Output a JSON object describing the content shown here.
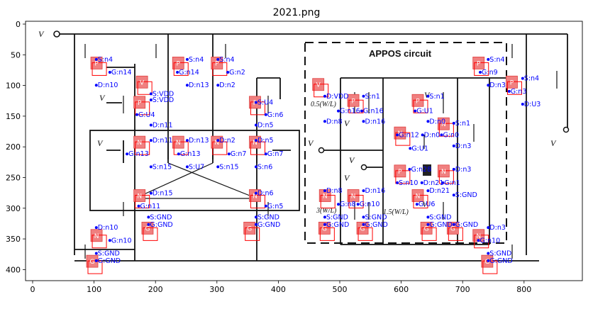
{
  "title": "2021.png",
  "axes": {
    "x_ticks": [
      "0",
      "100",
      "200",
      "300",
      "400",
      "500",
      "600",
      "700",
      "800"
    ],
    "y_ticks": [
      "0",
      "50",
      "100",
      "150",
      "200",
      "250",
      "300",
      "350",
      "400"
    ]
  },
  "circuit_labels": {
    "vin_left": "V",
    "apos_title": "APPOS circuit",
    "vout": "V",
    "vref": "V",
    "vover": "V",
    "vunder": "V",
    "scale1": "0.5(W/L)",
    "scale2": "3(W/L)",
    "scale3": "1.5(W/L)",
    "mp": "M",
    "vb3": "V",
    "vb1": "V",
    "vb2": "V",
    "vp": "V",
    "vn": "V"
  },
  "tags": [
    {
      "t": "P",
      "x": 104,
      "y": 64
    },
    {
      "t": "V",
      "x": 178,
      "y": 95
    },
    {
      "t": "P",
      "x": 174,
      "y": 128
    },
    {
      "t": "P",
      "x": 237,
      "y": 64
    },
    {
      "t": "P",
      "x": 300,
      "y": 64
    },
    {
      "t": "P",
      "x": 362,
      "y": 128
    },
    {
      "t": "N",
      "x": 174,
      "y": 193
    },
    {
      "t": "N",
      "x": 237,
      "y": 193
    },
    {
      "t": "N",
      "x": 300,
      "y": 193
    },
    {
      "t": "N",
      "x": 362,
      "y": 193
    },
    {
      "t": "N",
      "x": 174,
      "y": 280
    },
    {
      "t": "N",
      "x": 362,
      "y": 280
    },
    {
      "t": "G",
      "x": 187,
      "y": 333
    },
    {
      "t": "G",
      "x": 353,
      "y": 333
    },
    {
      "t": "N",
      "x": 104,
      "y": 345
    },
    {
      "t": "G",
      "x": 97,
      "y": 387
    },
    {
      "t": "V",
      "x": 465,
      "y": 99
    },
    {
      "t": "P",
      "x": 522,
      "y": 125
    },
    {
      "t": "P",
      "x": 627,
      "y": 125
    },
    {
      "t": "N",
      "x": 598,
      "y": 178
    },
    {
      "t": "N",
      "x": 669,
      "y": 163
    },
    {
      "t": "P",
      "x": 598,
      "y": 240
    },
    {
      "t": "N",
      "x": 669,
      "y": 240
    },
    {
      "t": "N",
      "x": 476,
      "y": 280
    },
    {
      "t": "N",
      "x": 522,
      "y": 280
    },
    {
      "t": "N",
      "x": 627,
      "y": 280
    },
    {
      "t": "G",
      "x": 475,
      "y": 333
    },
    {
      "t": "G",
      "x": 537,
      "y": 333
    },
    {
      "t": "G",
      "x": 641,
      "y": 333
    },
    {
      "t": "G",
      "x": 684,
      "y": 333
    },
    {
      "t": "P",
      "x": 726,
      "y": 64
    },
    {
      "t": "P",
      "x": 780,
      "y": 95
    },
    {
      "t": "N",
      "x": 726,
      "y": 345
    },
    {
      "t": "G",
      "x": 740,
      "y": 387
    }
  ],
  "node_labels": [
    {
      "s": "S:n4",
      "x": 106,
      "y": 61
    },
    {
      "s": "G:n14",
      "x": 128,
      "y": 82
    },
    {
      "s": "D:n10",
      "x": 106,
      "y": 103
    },
    {
      "s": "S:VDD",
      "x": 195,
      "y": 117
    },
    {
      "s": "S:VDD",
      "x": 195,
      "y": 127
    },
    {
      "s": "G:U4",
      "x": 172,
      "y": 151
    },
    {
      "s": "D:n11",
      "x": 195,
      "y": 168
    },
    {
      "s": "S:n4",
      "x": 254,
      "y": 61
    },
    {
      "s": "G:n14",
      "x": 238,
      "y": 82
    },
    {
      "s": "D:n13",
      "x": 254,
      "y": 103
    },
    {
      "s": "S:n4",
      "x": 304,
      "y": 61
    },
    {
      "s": "G:n2",
      "x": 320,
      "y": 82
    },
    {
      "s": "D:n2",
      "x": 304,
      "y": 103
    },
    {
      "s": "S:U4",
      "x": 366,
      "y": 131
    },
    {
      "s": "G:n6",
      "x": 382,
      "y": 151
    },
    {
      "s": "D:n5",
      "x": 366,
      "y": 168
    },
    {
      "s": "D:n11",
      "x": 195,
      "y": 193
    },
    {
      "s": "G:n13",
      "x": 156,
      "y": 215
    },
    {
      "s": "S:n15",
      "x": 195,
      "y": 236
    },
    {
      "s": "D:n13",
      "x": 254,
      "y": 193
    },
    {
      "s": "G:n13",
      "x": 240,
      "y": 215
    },
    {
      "s": "S:U7",
      "x": 254,
      "y": 236
    },
    {
      "s": "D:n2",
      "x": 304,
      "y": 193
    },
    {
      "s": "G:n7",
      "x": 322,
      "y": 215
    },
    {
      "s": "S:n15",
      "x": 304,
      "y": 236
    },
    {
      "s": "D:n5",
      "x": 366,
      "y": 193
    },
    {
      "s": "G:n7",
      "x": 382,
      "y": 215
    },
    {
      "s": "S:n6",
      "x": 366,
      "y": 236
    },
    {
      "s": "D:n15",
      "x": 195,
      "y": 279
    },
    {
      "s": "G:n11",
      "x": 175,
      "y": 300
    },
    {
      "s": "S:GND",
      "x": 191,
      "y": 318
    },
    {
      "s": "G:GND",
      "x": 191,
      "y": 330
    },
    {
      "s": "D:n6",
      "x": 366,
      "y": 279
    },
    {
      "s": "G:n5",
      "x": 382,
      "y": 300
    },
    {
      "s": "S:GND",
      "x": 366,
      "y": 318
    },
    {
      "s": "G:GND",
      "x": 366,
      "y": 330
    },
    {
      "s": "D:n10",
      "x": 106,
      "y": 335
    },
    {
      "s": "G:n10",
      "x": 128,
      "y": 356
    },
    {
      "s": "S:GND",
      "x": 106,
      "y": 377
    },
    {
      "s": "G:GND",
      "x": 106,
      "y": 389
    },
    {
      "s": "D:VDD",
      "x": 478,
      "y": 121
    },
    {
      "s": "S:n1",
      "x": 541,
      "y": 121
    },
    {
      "s": "G:n16",
      "x": 500,
      "y": 145
    },
    {
      "s": "G:n16",
      "x": 538,
      "y": 145
    },
    {
      "s": "D:n8",
      "x": 478,
      "y": 162
    },
    {
      "s": "D:n16",
      "x": 541,
      "y": 162
    },
    {
      "s": "S:n1",
      "x": 646,
      "y": 121
    },
    {
      "s": "G:U1",
      "x": 625,
      "y": 145
    },
    {
      "s": "D:n0",
      "x": 646,
      "y": 162
    },
    {
      "s": "S:n1",
      "x": 688,
      "y": 165
    },
    {
      "s": "G:n12",
      "x": 596,
      "y": 184
    },
    {
      "s": "D:n0",
      "x": 637,
      "y": 184
    },
    {
      "s": "G:n0",
      "x": 668,
      "y": 184
    },
    {
      "s": "G:U1",
      "x": 617,
      "y": 206
    },
    {
      "s": "D:n3",
      "x": 688,
      "y": 202
    },
    {
      "s": "G:n28",
      "x": 616,
      "y": 240
    },
    {
      "s": "D:n3",
      "x": 688,
      "y": 240
    },
    {
      "s": "S:n10",
      "x": 596,
      "y": 262
    },
    {
      "s": "D:n21",
      "x": 636,
      "y": 262
    },
    {
      "s": "G:n1",
      "x": 670,
      "y": 262
    },
    {
      "s": "D:n21",
      "x": 646,
      "y": 275
    },
    {
      "s": "S:GND",
      "x": 688,
      "y": 282
    },
    {
      "s": "D:n8",
      "x": 478,
      "y": 275
    },
    {
      "s": "D:n16",
      "x": 541,
      "y": 275
    },
    {
      "s": "G:n8",
      "x": 500,
      "y": 297
    },
    {
      "s": "G:n10",
      "x": 532,
      "y": 297
    },
    {
      "s": "G:U6",
      "x": 628,
      "y": 297
    },
    {
      "s": "S:GND",
      "x": 478,
      "y": 318
    },
    {
      "s": "G:GND",
      "x": 478,
      "y": 330
    },
    {
      "s": "S:GND",
      "x": 541,
      "y": 318
    },
    {
      "s": "G:GND",
      "x": 541,
      "y": 330
    },
    {
      "s": "S:GND",
      "x": 646,
      "y": 318
    },
    {
      "s": "G:GND",
      "x": 646,
      "y": 330
    },
    {
      "s": "G:GND",
      "x": 688,
      "y": 330
    },
    {
      "s": "S:n4",
      "x": 744,
      "y": 61
    },
    {
      "s": "G:n9",
      "x": 731,
      "y": 82
    },
    {
      "s": "D:n3",
      "x": 744,
      "y": 103
    },
    {
      "s": "S:n4",
      "x": 800,
      "y": 92
    },
    {
      "s": "G:n3",
      "x": 778,
      "y": 113
    },
    {
      "s": "D:U3",
      "x": 800,
      "y": 134
    },
    {
      "s": "D:n3",
      "x": 744,
      "y": 335
    },
    {
      "s": "G:n10",
      "x": 728,
      "y": 356
    },
    {
      "s": "S:GND",
      "x": 744,
      "y": 377
    },
    {
      "s": "G:GND",
      "x": 744,
      "y": 389
    }
  ]
}
